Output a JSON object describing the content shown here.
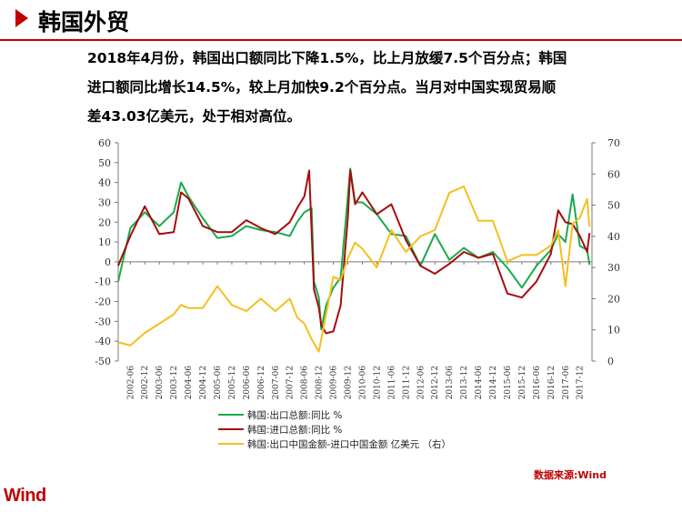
{
  "header": {
    "title": "韩国外贸"
  },
  "summary": {
    "line1": "2018年4月份，韩国出口额同比下降1.5%，比上月放缓7.5个百分点；韩国",
    "line2": "进口额同比增长14.5%，较上月加快9.2个百分点。当月对中国实现贸易顺",
    "line3": "差43.03亿美元，处于相对高位。"
  },
  "source": "数据来源:Wind",
  "logo": "Wind",
  "chart_data": {
    "type": "line",
    "left_axis": {
      "ylim": [
        -50,
        60
      ],
      "ticks": [
        60,
        50,
        40,
        30,
        20,
        10,
        0,
        -10,
        -20,
        -30,
        -40,
        -50
      ]
    },
    "right_axis": {
      "ylim": [
        0,
        70
      ],
      "ticks": [
        70,
        60,
        50,
        40,
        30,
        20,
        10,
        0
      ]
    },
    "x_ticks": [
      "2002-06",
      "2002-12",
      "2003-06",
      "2003-12",
      "2004-06",
      "2004-12",
      "2005-06",
      "2005-12",
      "2006-06",
      "2006-12",
      "2007-06",
      "2007-12",
      "2008-06",
      "2008-12",
      "2009-06",
      "2009-12",
      "2010-06",
      "2010-12",
      "2011-06",
      "2011-12",
      "2012-06",
      "2012-12",
      "2013-06",
      "2013-12",
      "2014-06",
      "2014-12",
      "2015-06",
      "2015-12",
      "2016-06",
      "2016-12",
      "2017-06",
      "2017-12"
    ],
    "grid": false,
    "legend_position": "bottom",
    "series": [
      {
        "name": "韩国:出口总额:同比 %",
        "axis": "left",
        "color": "#1aab4b",
        "x": [
          "2002-01",
          "2002-06",
          "2002-12",
          "2003-06",
          "2003-12",
          "2004-03",
          "2004-06",
          "2004-12",
          "2005-06",
          "2005-12",
          "2006-06",
          "2006-12",
          "2007-06",
          "2007-12",
          "2008-03",
          "2008-06",
          "2008-09",
          "2008-10",
          "2008-12",
          "2009-01",
          "2009-03",
          "2009-06",
          "2009-09",
          "2009-12",
          "2010-01",
          "2010-03",
          "2010-06",
          "2010-12",
          "2011-06",
          "2011-12",
          "2012-06",
          "2012-12",
          "2013-06",
          "2013-12",
          "2014-06",
          "2014-12",
          "2015-06",
          "2015-12",
          "2016-06",
          "2016-12",
          "2017-03",
          "2017-06",
          "2017-09",
          "2017-12",
          "2018-03",
          "2018-04"
        ],
        "values": [
          -10,
          17,
          25,
          18,
          25,
          40,
          33,
          22,
          12,
          13,
          18,
          16,
          15,
          13,
          20,
          25,
          27,
          -10,
          -18,
          -34,
          -22,
          -13,
          -8,
          33,
          47,
          30,
          30,
          24,
          14,
          13,
          -2,
          14,
          1,
          7,
          2,
          5,
          -3,
          -13,
          -2,
          6,
          14,
          10,
          34,
          8,
          6,
          -1.5
        ]
      },
      {
        "name": "韩国:进口总额:同比 %",
        "axis": "left",
        "color": "#a50c0c",
        "x": [
          "2002-01",
          "2002-06",
          "2002-12",
          "2003-06",
          "2003-12",
          "2004-03",
          "2004-06",
          "2004-12",
          "2005-06",
          "2005-12",
          "2006-06",
          "2006-12",
          "2007-06",
          "2007-12",
          "2008-03",
          "2008-06",
          "2008-08",
          "2008-10",
          "2008-12",
          "2009-01",
          "2009-03",
          "2009-06",
          "2009-09",
          "2009-12",
          "2010-01",
          "2010-03",
          "2010-06",
          "2010-12",
          "2011-06",
          "2011-12",
          "2012-06",
          "2012-12",
          "2013-06",
          "2013-12",
          "2014-06",
          "2014-12",
          "2015-06",
          "2015-12",
          "2016-06",
          "2016-12",
          "2017-03",
          "2017-06",
          "2017-09",
          "2017-12",
          "2018-03",
          "2018-04"
        ],
        "values": [
          -2,
          13,
          28,
          14,
          15,
          35,
          32,
          18,
          15,
          15,
          21,
          17,
          14,
          20,
          27,
          33,
          46,
          -14,
          -23,
          -32,
          -36,
          -35,
          -22,
          22,
          46,
          29,
          35,
          24,
          29,
          11,
          -2,
          -6,
          -1,
          5,
          2,
          4,
          -16,
          -18,
          -10,
          4,
          26,
          20,
          19,
          13,
          5,
          14.5
        ]
      },
      {
        "name": "韩国:出口中国金额-进口中国金额 亿美元 （右）",
        "axis": "right",
        "color": "#f5bf1d",
        "x": [
          "2002-01",
          "2002-06",
          "2002-12",
          "2003-06",
          "2003-12",
          "2004-03",
          "2004-06",
          "2004-12",
          "2005-06",
          "2005-12",
          "2006-06",
          "2006-12",
          "2007-06",
          "2007-12",
          "2008-03",
          "2008-06",
          "2008-09",
          "2008-12",
          "2009-03",
          "2009-06",
          "2009-09",
          "2009-12",
          "2010-03",
          "2010-06",
          "2010-12",
          "2011-06",
          "2011-12",
          "2012-06",
          "2012-12",
          "2013-06",
          "2013-12",
          "2014-06",
          "2014-12",
          "2015-06",
          "2015-12",
          "2016-06",
          "2016-12",
          "2017-03",
          "2017-06",
          "2017-09",
          "2017-12",
          "2018-03",
          "2018-04"
        ],
        "values": [
          6,
          5,
          9,
          12,
          15,
          18,
          17,
          17,
          24,
          18,
          16,
          20,
          16,
          20,
          14,
          12,
          7,
          3,
          15,
          27,
          26,
          33,
          38,
          36,
          30,
          42,
          35,
          40,
          42,
          54,
          56,
          45,
          45,
          32,
          34,
          34,
          37,
          42,
          24,
          44,
          46,
          52,
          43.03
        ]
      }
    ]
  }
}
